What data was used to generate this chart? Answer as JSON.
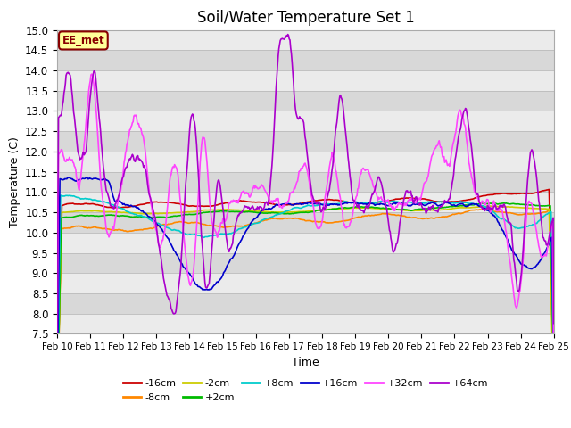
{
  "title": "Soil/Water Temperature Set 1",
  "xlabel": "Time",
  "ylabel": "Temperature (C)",
  "ylim": [
    7.5,
    15.0
  ],
  "yticks": [
    7.5,
    8.0,
    8.5,
    9.0,
    9.5,
    10.0,
    10.5,
    11.0,
    11.5,
    12.0,
    12.5,
    13.0,
    13.5,
    14.0,
    14.5,
    15.0
  ],
  "x_labels": [
    "Feb 10",
    "Feb 11",
    "Feb 12",
    "Feb 13",
    "Feb 14",
    "Feb 15",
    "Feb 16",
    "Feb 17",
    "Feb 18",
    "Feb 19",
    "Feb 20",
    "Feb 21",
    "Feb 22",
    "Feb 23",
    "Feb 24",
    "Feb 25"
  ],
  "series": {
    "-16cm": {
      "color": "#cc0000",
      "lw": 1.2
    },
    "-8cm": {
      "color": "#ff8800",
      "lw": 1.2
    },
    "-2cm": {
      "color": "#cccc00",
      "lw": 1.2
    },
    "+2cm": {
      "color": "#00bb00",
      "lw": 1.2
    },
    "+8cm": {
      "color": "#00cccc",
      "lw": 1.2
    },
    "+16cm": {
      "color": "#0000cc",
      "lw": 1.2
    },
    "+32cm": {
      "color": "#ff44ff",
      "lw": 1.2
    },
    "+64cm": {
      "color": "#aa00cc",
      "lw": 1.2
    }
  },
  "annotation_text": "EE_met",
  "annotation_bg": "#ffff99",
  "annotation_border": "#880000",
  "stripe_light": "#ebebeb",
  "stripe_dark": "#d8d8d8"
}
